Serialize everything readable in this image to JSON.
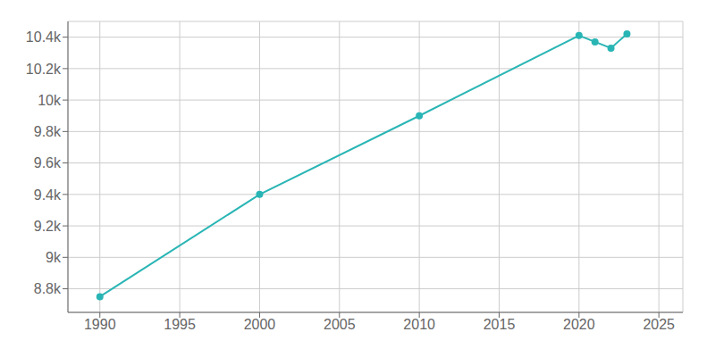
{
  "chart_data": {
    "type": "line",
    "x": [
      1990,
      2000,
      2010,
      2020,
      2021,
      2022,
      2023
    ],
    "values": [
      8750,
      9400,
      9900,
      10410,
      10370,
      10330,
      10420
    ],
    "color": "#2ab5b5",
    "marker": "circle",
    "xlim": [
      1988,
      2026.5
    ],
    "ylim": [
      8650,
      10500
    ],
    "xticks": [
      1990,
      1995,
      2000,
      2005,
      2010,
      2015,
      2020,
      2025
    ],
    "yticks": [
      {
        "value": 8800,
        "label": "8.8k"
      },
      {
        "value": 9000,
        "label": "9k"
      },
      {
        "value": 9200,
        "label": "9.2k"
      },
      {
        "value": 9400,
        "label": "9.4k"
      },
      {
        "value": 9600,
        "label": "9.6k"
      },
      {
        "value": 9800,
        "label": "9.8k"
      },
      {
        "value": 10000,
        "label": "10k"
      },
      {
        "value": 10200,
        "label": "10.2k"
      },
      {
        "value": 10400,
        "label": "10.4k"
      }
    ],
    "grid": true
  }
}
